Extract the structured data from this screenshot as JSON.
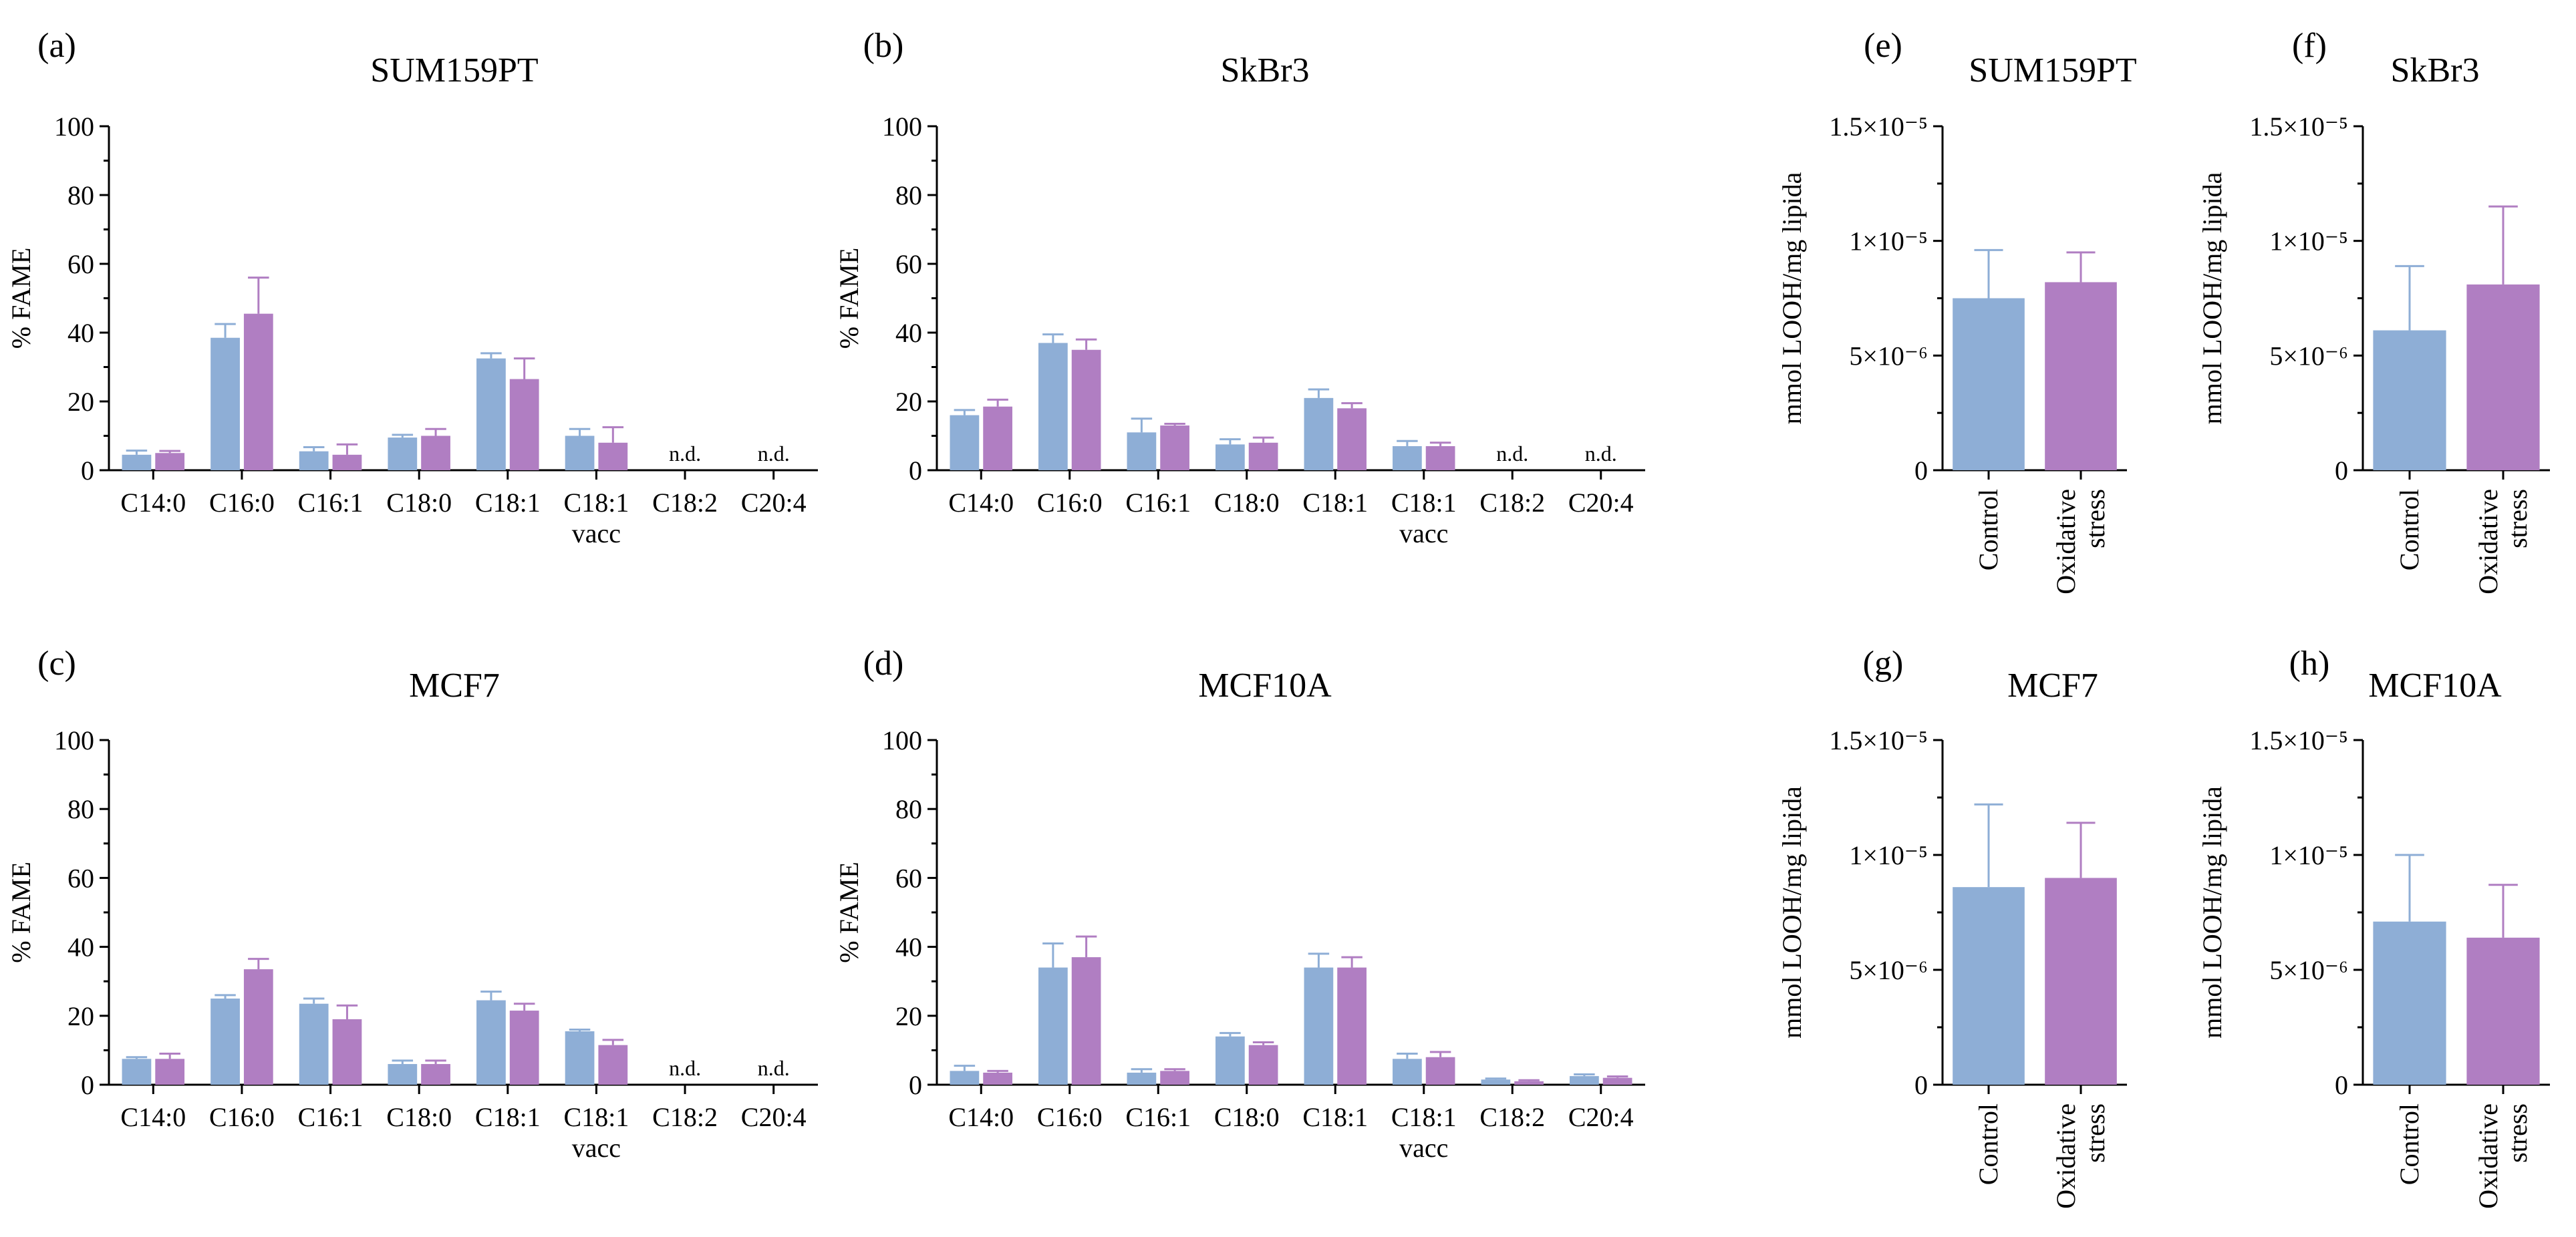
{
  "colors": {
    "control": "#8eaed6",
    "oxidative": "#b07ec2"
  },
  "chart_data": [
    {
      "panel": "(a)",
      "title": "SUM159PT",
      "type": "bar",
      "ylabel": "% FAME",
      "ylim": [
        0,
        100
      ],
      "yticks": [
        "0",
        "20",
        "40",
        "60",
        "80",
        "100"
      ],
      "categories": [
        "C14:0",
        "C16:0",
        "C16:1",
        "C18:0",
        "C18:1",
        "C18:1 vacc",
        "C18:2",
        "C20:4"
      ],
      "category_labels": [
        [
          "C14:0"
        ],
        [
          "C16:0"
        ],
        [
          "C16:1"
        ],
        [
          "C18:0"
        ],
        [
          "C18:1"
        ],
        [
          "C18:1",
          "vacc"
        ],
        [
          "C18:2"
        ],
        [
          "C20:4"
        ]
      ],
      "series": [
        {
          "name": "Control",
          "values": [
            4.5,
            38.5,
            5.5,
            9.5,
            32.5,
            10,
            null,
            null
          ],
          "errors": [
            1.2,
            4,
            1.2,
            0.8,
            1.5,
            2,
            null,
            null
          ]
        },
        {
          "name": "Oxidative stress",
          "values": [
            5,
            45.5,
            4.5,
            10,
            26.5,
            8,
            null,
            null
          ],
          "errors": [
            0.6,
            10.5,
            3,
            2,
            6,
            4.5,
            null,
            null
          ]
        }
      ],
      "annotations": [
        {
          "category": "C18:2",
          "text": "n.d."
        },
        {
          "category": "C20:4",
          "text": "n.d."
        }
      ]
    },
    {
      "panel": "(b)",
      "title": "SkBr3",
      "type": "bar",
      "ylabel": "% FAME",
      "ylim": [
        0,
        100
      ],
      "yticks": [
        "0",
        "20",
        "40",
        "60",
        "80",
        "100"
      ],
      "categories": [
        "C14:0",
        "C16:0",
        "C16:1",
        "C18:0",
        "C18:1",
        "C18:1 vacc",
        "C18:2",
        "C20:4"
      ],
      "category_labels": [
        [
          "C14:0"
        ],
        [
          "C16:0"
        ],
        [
          "C16:1"
        ],
        [
          "C18:0"
        ],
        [
          "C18:1"
        ],
        [
          "C18:1",
          "vacc"
        ],
        [
          "C18:2"
        ],
        [
          "C20:4"
        ]
      ],
      "series": [
        {
          "name": "Control",
          "values": [
            16,
            37,
            11,
            7.5,
            21,
            7,
            null,
            null
          ],
          "errors": [
            1.5,
            2.5,
            4,
            1.5,
            2.5,
            1.5,
            null,
            null
          ]
        },
        {
          "name": "Oxidative stress",
          "values": [
            18.5,
            35,
            13,
            8,
            18,
            7,
            null,
            null
          ],
          "errors": [
            2,
            3,
            0.5,
            1.5,
            1.5,
            1,
            null,
            null
          ]
        }
      ],
      "annotations": [
        {
          "category": "C18:2",
          "text": "n.d."
        },
        {
          "category": "C20:4",
          "text": "n.d."
        }
      ]
    },
    {
      "panel": "(c)",
      "title": "MCF7",
      "type": "bar",
      "ylabel": "% FAME",
      "ylim": [
        0,
        100
      ],
      "yticks": [
        "0",
        "20",
        "40",
        "60",
        "80",
        "100"
      ],
      "categories": [
        "C14:0",
        "C16:0",
        "C16:1",
        "C18:0",
        "C18:1",
        "C18:1 vacc",
        "C18:2",
        "C20:4"
      ],
      "category_labels": [
        [
          "C14:0"
        ],
        [
          "C16:0"
        ],
        [
          "C16:1"
        ],
        [
          "C18:0"
        ],
        [
          "C18:1"
        ],
        [
          "C18:1",
          "vacc"
        ],
        [
          "C18:2"
        ],
        [
          "C20:4"
        ]
      ],
      "series": [
        {
          "name": "Control",
          "values": [
            7.5,
            25,
            23.5,
            6,
            24.5,
            15.5,
            null,
            null
          ],
          "errors": [
            0.5,
            1,
            1.5,
            1,
            2.5,
            0.5,
            null,
            null
          ]
        },
        {
          "name": "Oxidative stress",
          "values": [
            7.5,
            33.5,
            19,
            6,
            21.5,
            11.5,
            null,
            null
          ],
          "errors": [
            1.5,
            3,
            4,
            1,
            2,
            1.5,
            null,
            null
          ]
        }
      ],
      "annotations": [
        {
          "category": "C18:2",
          "text": "n.d."
        },
        {
          "category": "C20:4",
          "text": "n.d."
        }
      ]
    },
    {
      "panel": "(d)",
      "title": "MCF10A",
      "type": "bar",
      "ylabel": "% FAME",
      "ylim": [
        0,
        100
      ],
      "yticks": [
        "0",
        "20",
        "40",
        "60",
        "80",
        "100"
      ],
      "categories": [
        "C14:0",
        "C16:0",
        "C16:1",
        "C18:0",
        "C18:1",
        "C18:1 vacc",
        "C18:2",
        "C20:4"
      ],
      "category_labels": [
        [
          "C14:0"
        ],
        [
          "C16:0"
        ],
        [
          "C16:1"
        ],
        [
          "C18:0"
        ],
        [
          "C18:1"
        ],
        [
          "C18:1",
          "vacc"
        ],
        [
          "C18:2"
        ],
        [
          "C20:4"
        ]
      ],
      "series": [
        {
          "name": "Control",
          "values": [
            4,
            34,
            3.5,
            14,
            34,
            7.5,
            1.5,
            2.5
          ],
          "errors": [
            1.5,
            7,
            1,
            1,
            4,
            1.5,
            0.3,
            0.5
          ]
        },
        {
          "name": "Oxidative stress",
          "values": [
            3.5,
            37,
            4,
            11.5,
            34,
            8,
            1,
            2
          ],
          "errors": [
            0.5,
            6,
            0.5,
            0.8,
            3,
            1.5,
            0.3,
            0.4
          ]
        }
      ],
      "annotations": []
    },
    {
      "panel": "(e)",
      "title": "SUM159PT",
      "type": "bar",
      "ylabel": "mmol LOOH/mg lipida",
      "ylim": [
        0,
        1.5e-05
      ],
      "yticks": [
        "0",
        "5×10⁻⁶",
        "1×10⁻⁵",
        "1.5×10⁻⁵"
      ],
      "categories": [
        "Control",
        "Oxidative stress"
      ],
      "category_labels": [
        [
          "Control"
        ],
        [
          "Oxidative",
          "stress"
        ]
      ],
      "values": [
        7.5e-06,
        8.2e-06
      ],
      "errors": [
        2.1e-06,
        1.3e-06
      ]
    },
    {
      "panel": "(f)",
      "title": "SkBr3",
      "type": "bar",
      "ylabel": "mmol LOOH/mg lipida",
      "ylim": [
        0,
        1.5e-05
      ],
      "yticks": [
        "0",
        "5×10⁻⁶",
        "1×10⁻⁵",
        "1.5×10⁻⁵"
      ],
      "categories": [
        "Control",
        "Oxidative stress"
      ],
      "category_labels": [
        [
          "Control"
        ],
        [
          "Oxidative",
          "stress"
        ]
      ],
      "values": [
        6.1e-06,
        8.1e-06
      ],
      "errors": [
        2.8e-06,
        3.4e-06
      ]
    },
    {
      "panel": "(g)",
      "title": "MCF7",
      "type": "bar",
      "ylabel": "mmol LOOH/mg lipida",
      "ylim": [
        0,
        1.5e-05
      ],
      "yticks": [
        "0",
        "5×10⁻⁶",
        "1×10⁻⁵",
        "1.5×10⁻⁵"
      ],
      "categories": [
        "Control",
        "Oxidative stress"
      ],
      "category_labels": [
        [
          "Control"
        ],
        [
          "Oxidative",
          "stress"
        ]
      ],
      "values": [
        8.6e-06,
        9e-06
      ],
      "errors": [
        3.6e-06,
        2.4e-06
      ]
    },
    {
      "panel": "(h)",
      "title": "MCF10A",
      "type": "bar",
      "ylabel": "mmol LOOH/mg lipida",
      "ylim": [
        0,
        1.5e-05
      ],
      "yticks": [
        "0",
        "5×10⁻⁶",
        "1×10⁻⁵",
        "1.5×10⁻⁵"
      ],
      "categories": [
        "Control",
        "Oxidative stress"
      ],
      "category_labels": [
        [
          "Control"
        ],
        [
          "Oxidative",
          "stress"
        ]
      ],
      "values": [
        7.1e-06,
        6.4e-06
      ],
      "errors": [
        2.9e-06,
        2.3e-06
      ]
    }
  ]
}
